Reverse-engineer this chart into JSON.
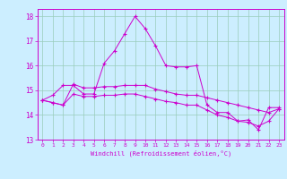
{
  "xlabel": "Windchill (Refroidissement éolien,°C)",
  "bg_color": "#cceeff",
  "grid_color": "#99ccbb",
  "line_color": "#cc00cc",
  "xlim": [
    -0.5,
    23.5
  ],
  "ylim": [
    13,
    18.3
  ],
  "yticks": [
    13,
    14,
    15,
    16,
    17,
    18
  ],
  "xticks": [
    0,
    1,
    2,
    3,
    4,
    5,
    6,
    7,
    8,
    9,
    10,
    11,
    12,
    13,
    14,
    15,
    16,
    17,
    18,
    19,
    20,
    21,
    22,
    23
  ],
  "series": [
    [
      14.6,
      14.8,
      15.2,
      15.2,
      14.85,
      14.85,
      16.1,
      16.6,
      17.3,
      18.0,
      17.5,
      16.8,
      16.0,
      15.95,
      15.95,
      16.0,
      14.4,
      14.1,
      14.1,
      13.75,
      13.8,
      13.4,
      14.3,
      14.3
    ],
    [
      14.6,
      14.5,
      14.4,
      15.25,
      15.1,
      15.1,
      15.15,
      15.15,
      15.2,
      15.2,
      15.2,
      15.05,
      14.95,
      14.85,
      14.8,
      14.8,
      14.7,
      14.6,
      14.5,
      14.4,
      14.3,
      14.2,
      14.1,
      14.25
    ],
    [
      14.6,
      14.5,
      14.4,
      14.85,
      14.75,
      14.75,
      14.8,
      14.8,
      14.85,
      14.85,
      14.75,
      14.65,
      14.55,
      14.5,
      14.4,
      14.4,
      14.2,
      14.0,
      13.9,
      13.75,
      13.7,
      13.55,
      13.75,
      14.25
    ]
  ]
}
